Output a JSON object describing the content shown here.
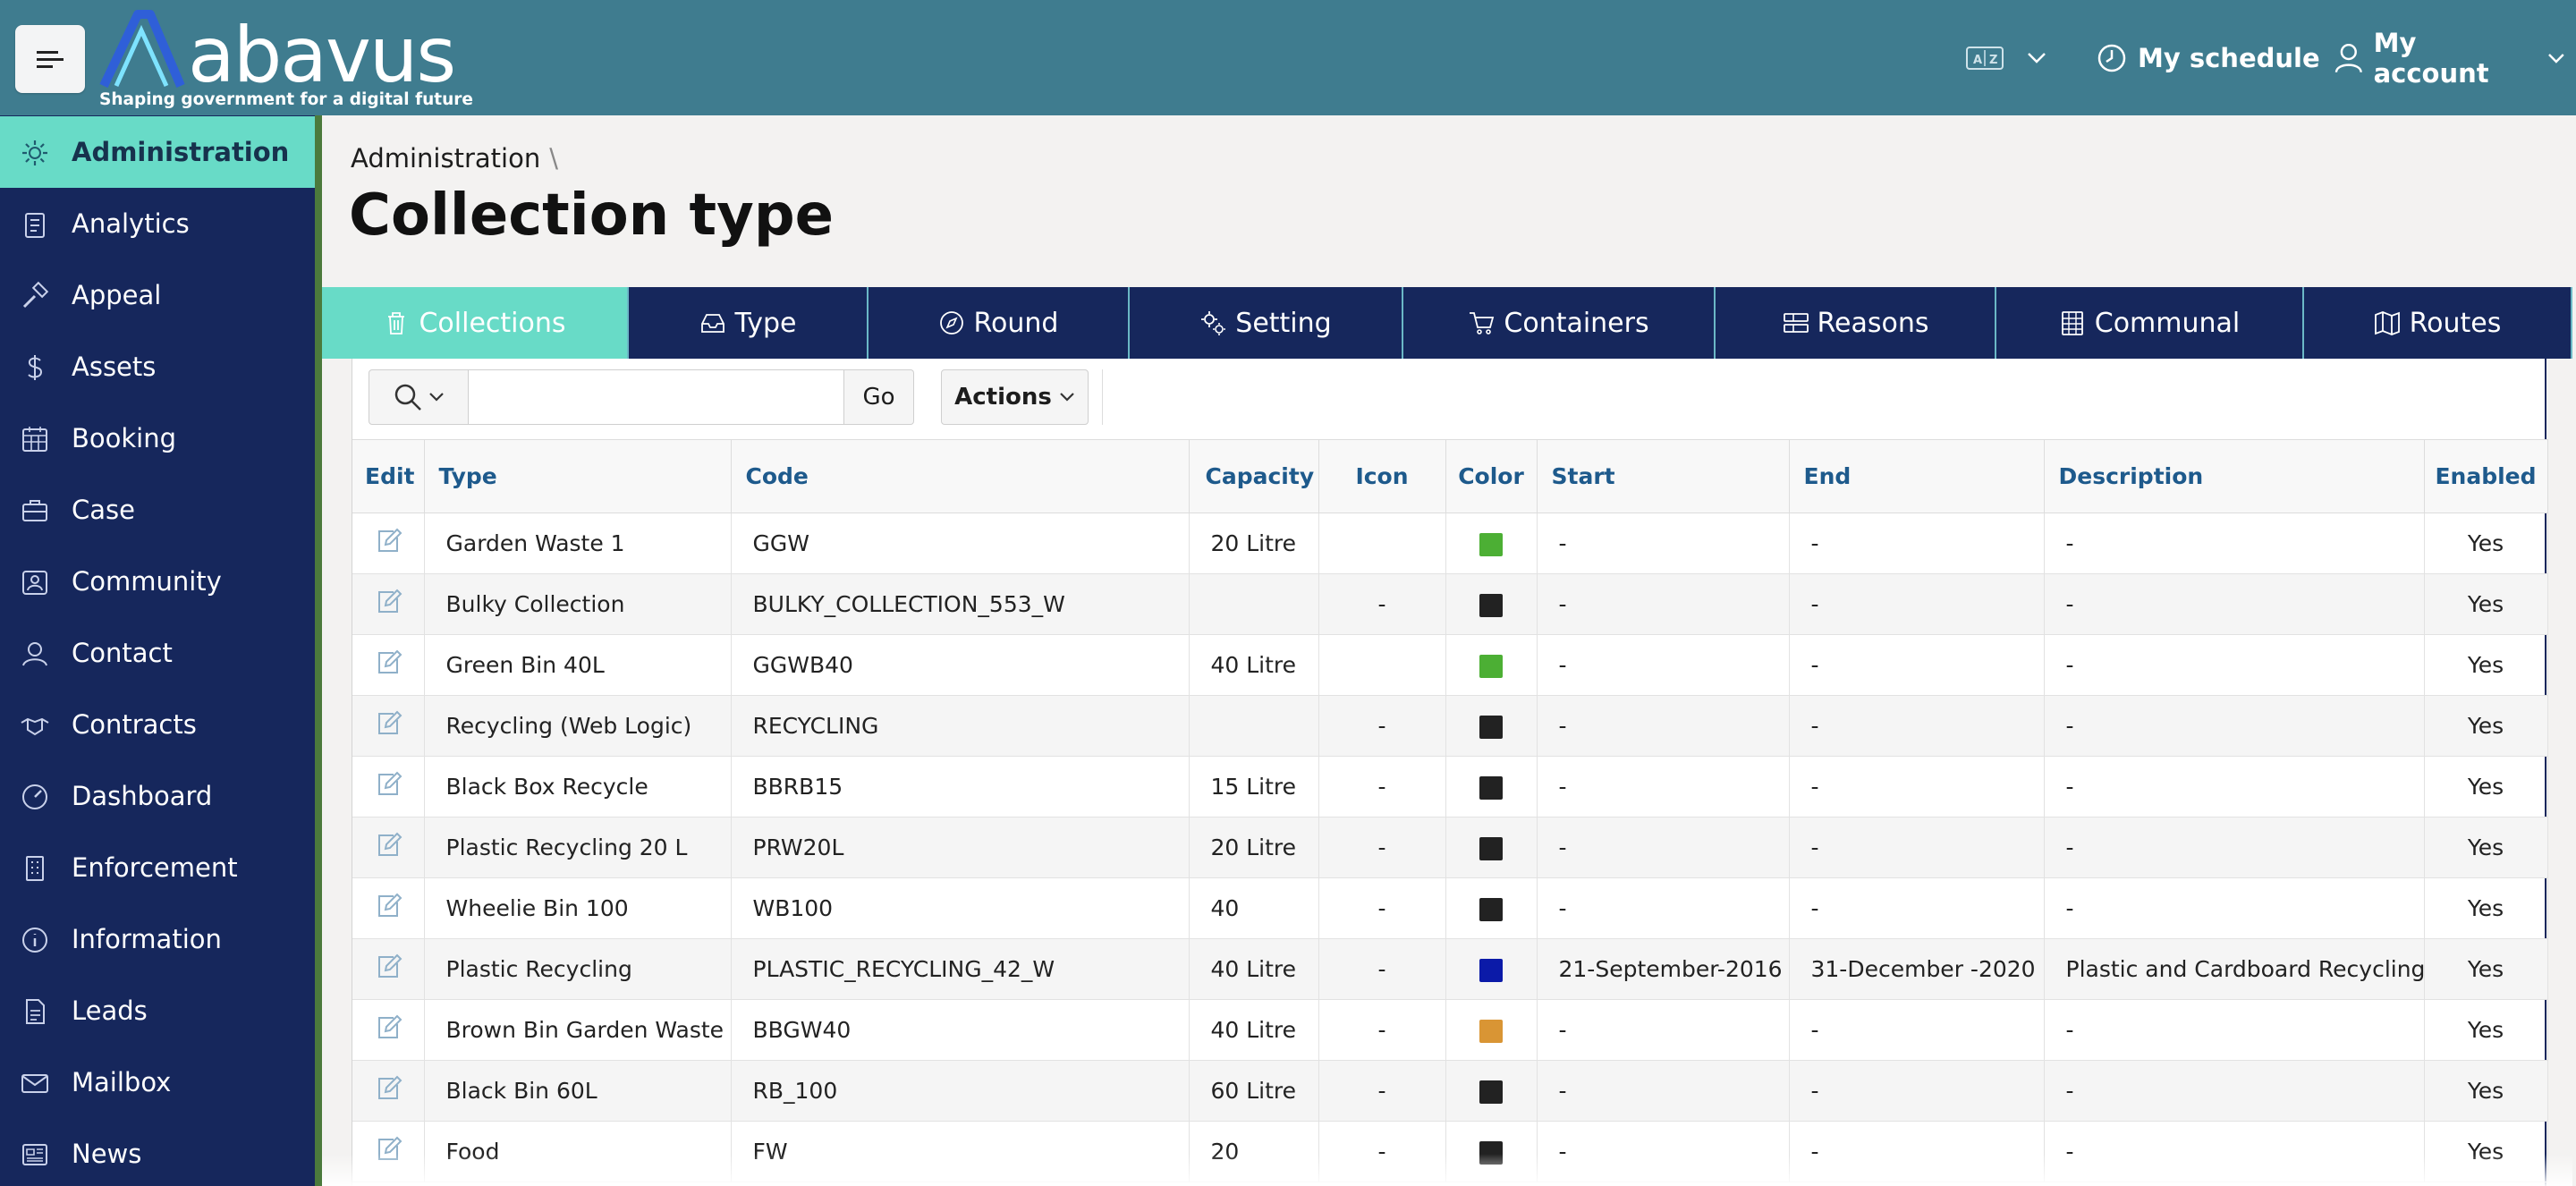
{
  "app": {
    "logo_text": "abavus",
    "tagline": "Shaping government for a digital future"
  },
  "header": {
    "language_icon": "translate-icon",
    "schedule_label": "My schedule",
    "account_label": "My account"
  },
  "sidebar": {
    "items": [
      {
        "label": "Administration",
        "icon": "gear-icon"
      },
      {
        "label": "Analytics",
        "icon": "clipboard-icon"
      },
      {
        "label": "Appeal",
        "icon": "gavel-icon"
      },
      {
        "label": "Assets",
        "icon": "dollar-icon"
      },
      {
        "label": "Booking",
        "icon": "calendar-icon"
      },
      {
        "label": "Case",
        "icon": "briefcase-icon"
      },
      {
        "label": "Community",
        "icon": "people-icon"
      },
      {
        "label": "Contact",
        "icon": "contact-icon"
      },
      {
        "label": "Contracts",
        "icon": "handshake-icon"
      },
      {
        "label": "Dashboard",
        "icon": "gauge-icon"
      },
      {
        "label": "Enforcement",
        "icon": "building-icon"
      },
      {
        "label": "Information",
        "icon": "info-icon"
      },
      {
        "label": "Leads",
        "icon": "document-icon"
      },
      {
        "label": "Mailbox",
        "icon": "mail-icon"
      },
      {
        "label": "News",
        "icon": "newspaper-icon"
      }
    ]
  },
  "breadcrumb": {
    "root": "Administration",
    "separator": "\\"
  },
  "page_title": "Collection type",
  "tabs": [
    {
      "label": "Collections",
      "icon": "trash-icon"
    },
    {
      "label": "Type",
      "icon": "inbox-icon"
    },
    {
      "label": "Round",
      "icon": "compass-icon"
    },
    {
      "label": "Setting",
      "icon": "gears-icon"
    },
    {
      "label": "Containers",
      "icon": "cart-icon"
    },
    {
      "label": "Reasons",
      "icon": "list-icon"
    },
    {
      "label": "Communal",
      "icon": "grid-building-icon"
    },
    {
      "label": "Routes",
      "icon": "map-icon"
    }
  ],
  "toolbar": {
    "search_value": "",
    "go_label": "Go",
    "actions_label": "Actions"
  },
  "table": {
    "headers": [
      "Edit",
      "Type",
      "Code",
      "Capacity",
      "Icon",
      "Color",
      "Start",
      "End",
      "Description",
      "Enabled"
    ],
    "rows": [
      {
        "type": "Garden Waste 1",
        "code": "GGW",
        "capacity": "20 Litre",
        "icon": "",
        "color": "#4caf34",
        "start": "-",
        "end": "-",
        "description": "-",
        "enabled": "Yes"
      },
      {
        "type": "Bulky Collection",
        "code": "BULKY_COLLECTION_553_W",
        "capacity": "",
        "icon": "-",
        "color": "#222222",
        "start": "-",
        "end": "-",
        "description": "-",
        "enabled": "Yes"
      },
      {
        "type": "Green Bin 40L",
        "code": "GGWB40",
        "capacity": "40 Litre",
        "icon": "",
        "color": "#4caf34",
        "start": "-",
        "end": "-",
        "description": "-",
        "enabled": "Yes"
      },
      {
        "type": "Recycling (Web Logic)",
        "code": "RECYCLING",
        "capacity": "",
        "icon": "-",
        "color": "#222222",
        "start": "-",
        "end": "-",
        "description": "-",
        "enabled": "Yes"
      },
      {
        "type": "Black Box Recycle",
        "code": "BBRB15",
        "capacity": "15 Litre",
        "icon": "-",
        "color": "#222222",
        "start": "-",
        "end": "-",
        "description": "-",
        "enabled": "Yes"
      },
      {
        "type": "Plastic Recycling 20 L",
        "code": "PRW20L",
        "capacity": "20 Litre",
        "icon": "-",
        "color": "#222222",
        "start": "-",
        "end": "-",
        "description": "-",
        "enabled": "Yes"
      },
      {
        "type": "Wheelie Bin 100",
        "code": "WB100",
        "capacity": "40",
        "icon": "-",
        "color": "#222222",
        "start": "-",
        "end": "-",
        "description": "-",
        "enabled": "Yes"
      },
      {
        "type": "Plastic Recycling",
        "code": "PLASTIC_RECYCLING_42_W",
        "capacity": "40 Litre",
        "icon": "-",
        "color": "#0b1aa8",
        "start": "21-September-2016",
        "end": "31-December -2020",
        "description": "Plastic and Cardboard Recycling",
        "enabled": "Yes"
      },
      {
        "type": "Brown Bin Garden Waste",
        "code": "BBGW40",
        "capacity": "40 Litre",
        "icon": "-",
        "color": "#d99534",
        "start": "-",
        "end": "-",
        "description": "-",
        "enabled": "Yes"
      },
      {
        "type": "Black Bin 60L",
        "code": "RB_100",
        "capacity": "60 Litre",
        "icon": "-",
        "color": "#222222",
        "start": "-",
        "end": "-",
        "description": "-",
        "enabled": "Yes"
      },
      {
        "type": "Food",
        "code": "FW",
        "capacity": "20",
        "icon": "-",
        "color": "#222222",
        "start": "-",
        "end": "-",
        "description": "-",
        "enabled": "Yes"
      }
    ]
  }
}
